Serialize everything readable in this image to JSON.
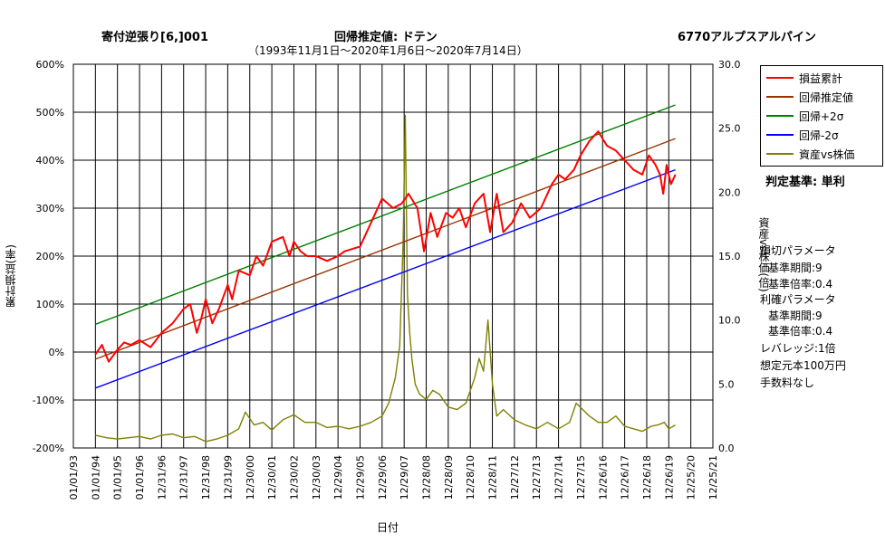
{
  "header": {
    "strategy": "寄付逆張り[6,]001",
    "regression": "回帰推定値: ドテン",
    "ticker": "6770アルプスアルパイン",
    "period": "（1993年11月1日～2020年1月6日～2020年7月14日）"
  },
  "legend": {
    "items": [
      {
        "label": "損益累計",
        "color": "#ff0000"
      },
      {
        "label": "回帰推定値",
        "color": "#993300"
      },
      {
        "label": "回帰+2σ",
        "color": "#008000"
      },
      {
        "label": "回帰-2σ",
        "color": "#0000ff"
      },
      {
        "label": "資産vs株価",
        "color": "#808000"
      }
    ]
  },
  "judge": "判定基準: 単利",
  "params": {
    "line1": "損切パラメータ",
    "line2": "基準期間:9",
    "line3": "基準倍率:0.4",
    "line4": "利確パラメータ",
    "line5": "基準期間:9",
    "line6": "基準倍率:0.4",
    "line7": "レバレッジ:1倍",
    "line8": "想定元本100万円",
    "line9": "手数料なし"
  },
  "chart_data": {
    "type": "line",
    "xlabel": "日付",
    "ylabel_left": "累計損益(率)",
    "ylabel_right": "資産vs株価(倍)",
    "left_axis": {
      "min": -200,
      "max": 600,
      "step": 100,
      "ticks": [
        "-200%",
        "-100%",
        "0%",
        "100%",
        "200%",
        "300%",
        "400%",
        "500%",
        "600%"
      ]
    },
    "right_axis": {
      "min": 0,
      "max": 30,
      "step": 5,
      "ticks": [
        "0.0",
        "5.0",
        "10.0",
        "15.0",
        "20.0",
        "25.0",
        "30.0"
      ]
    },
    "x_ticks": [
      "01/01/93",
      "01/01/94",
      "01/01/95",
      "01/01/96",
      "12/31/96",
      "12/31/97",
      "12/31/98",
      "12/31/99",
      "12/30/00",
      "12/30/01",
      "12/30/02",
      "12/30/03",
      "12/29/04",
      "12/29/05",
      "12/29/06",
      "12/29/07",
      "12/28/08",
      "12/28/09",
      "12/28/10",
      "12/28/11",
      "12/27/12",
      "12/27/13",
      "12/27/14",
      "12/27/15",
      "12/26/16",
      "12/26/17",
      "12/26/18",
      "12/26/19",
      "12/25/20",
      "12/25/21"
    ],
    "series": [
      {
        "name": "損益累計",
        "axis": "left",
        "x": [
          1994.0,
          1994.3,
          1994.6,
          1995.0,
          1995.3,
          1995.6,
          1996.0,
          1996.5,
          1997.0,
          1997.5,
          1998.0,
          1998.3,
          1998.6,
          1998.8,
          1999.0,
          1999.3,
          1999.6,
          2000.0,
          2000.2,
          2000.5,
          2001.0,
          2001.3,
          2001.6,
          2002.0,
          2002.5,
          2002.8,
          2003.0,
          2003.3,
          2003.6,
          2004.0,
          2004.5,
          2005.0,
          2005.3,
          2006.0,
          2006.5,
          2007.0,
          2007.5,
          2007.9,
          2008.2,
          2008.6,
          2008.9,
          2009.2,
          2009.5,
          2009.9,
          2010.2,
          2010.5,
          2010.8,
          2011.2,
          2011.6,
          2011.9,
          2012.2,
          2012.5,
          2012.9,
          2013.3,
          2013.7,
          2014.2,
          2014.7,
          2015.0,
          2015.3,
          2015.7,
          2016.0,
          2016.4,
          2016.8,
          2017.2,
          2017.6,
          2018.0,
          2018.4,
          2018.8,
          2019.1,
          2019.4,
          2019.6,
          2019.75,
          2019.9,
          2020.1,
          2020.3
        ],
        "values": [
          -5,
          15,
          -20,
          5,
          20,
          15,
          25,
          10,
          40,
          60,
          90,
          100,
          40,
          70,
          110,
          60,
          90,
          140,
          110,
          170,
          160,
          200,
          180,
          230,
          240,
          200,
          230,
          210,
          200,
          200,
          190,
          200,
          210,
          220,
          270,
          320,
          300,
          310,
          330,
          300,
          210,
          290,
          240,
          290,
          280,
          300,
          260,
          310,
          330,
          250,
          330,
          250,
          270,
          310,
          280,
          300,
          350,
          370,
          360,
          380,
          410,
          440,
          460,
          430,
          420,
          400,
          380,
          370,
          410,
          390,
          370,
          330,
          390,
          350,
          370
        ]
      },
      {
        "name": "回帰推定値",
        "axis": "left",
        "x": [
          1994.0,
          2020.3
        ],
        "values": [
          -15,
          445
        ]
      },
      {
        "name": "回帰+2σ",
        "axis": "left",
        "x": [
          1994.0,
          2020.3
        ],
        "values": [
          58,
          515
        ]
      },
      {
        "name": "回帰-2σ",
        "axis": "left",
        "x": [
          1994.0,
          2020.3
        ],
        "values": [
          -75,
          380
        ]
      },
      {
        "name": "資産vs株価",
        "axis": "right",
        "x": [
          1994.0,
          1994.5,
          1995.0,
          1995.5,
          1996.0,
          1996.5,
          1997.0,
          1997.5,
          1998.0,
          1998.5,
          1999.0,
          1999.5,
          2000.0,
          2000.5,
          2000.8,
          2001.2,
          2001.6,
          2002.0,
          2002.5,
          2003.0,
          2003.5,
          2004.0,
          2004.5,
          2005.0,
          2005.5,
          2006.0,
          2006.5,
          2007.0,
          2007.3,
          2007.6,
          2007.8,
          2007.95,
          2008.05,
          2008.15,
          2008.25,
          2008.35,
          2008.5,
          2008.7,
          2009.0,
          2009.3,
          2009.6,
          2010.0,
          2010.4,
          2010.8,
          2011.2,
          2011.4,
          2011.6,
          2011.8,
          2012.0,
          2012.2,
          2012.5,
          2013.0,
          2013.5,
          2014.0,
          2014.5,
          2015.0,
          2015.5,
          2015.8,
          2016.1,
          2016.4,
          2016.8,
          2017.2,
          2017.6,
          2018.0,
          2018.4,
          2018.8,
          2019.2,
          2019.5,
          2019.8,
          2020.0,
          2020.3
        ],
        "values": [
          1.0,
          0.8,
          0.7,
          0.8,
          0.9,
          0.7,
          1.0,
          1.1,
          0.8,
          0.9,
          0.5,
          0.7,
          1.0,
          1.5,
          2.8,
          1.8,
          2.0,
          1.4,
          2.2,
          2.6,
          2.0,
          2.0,
          1.6,
          1.7,
          1.5,
          1.7,
          2.0,
          2.5,
          3.5,
          5.5,
          8.0,
          16.0,
          26.0,
          12.0,
          9.0,
          7.0,
          5.0,
          4.2,
          3.8,
          4.5,
          4.2,
          3.2,
          3.0,
          3.5,
          5.5,
          7.0,
          6.0,
          10.0,
          5.0,
          2.5,
          3.0,
          2.2,
          1.8,
          1.5,
          2.0,
          1.5,
          2.0,
          3.5,
          3.0,
          2.5,
          2.0,
          2.0,
          2.5,
          1.7,
          1.5,
          1.3,
          1.7,
          1.8,
          2.0,
          1.5,
          1.8
        ]
      }
    ]
  }
}
